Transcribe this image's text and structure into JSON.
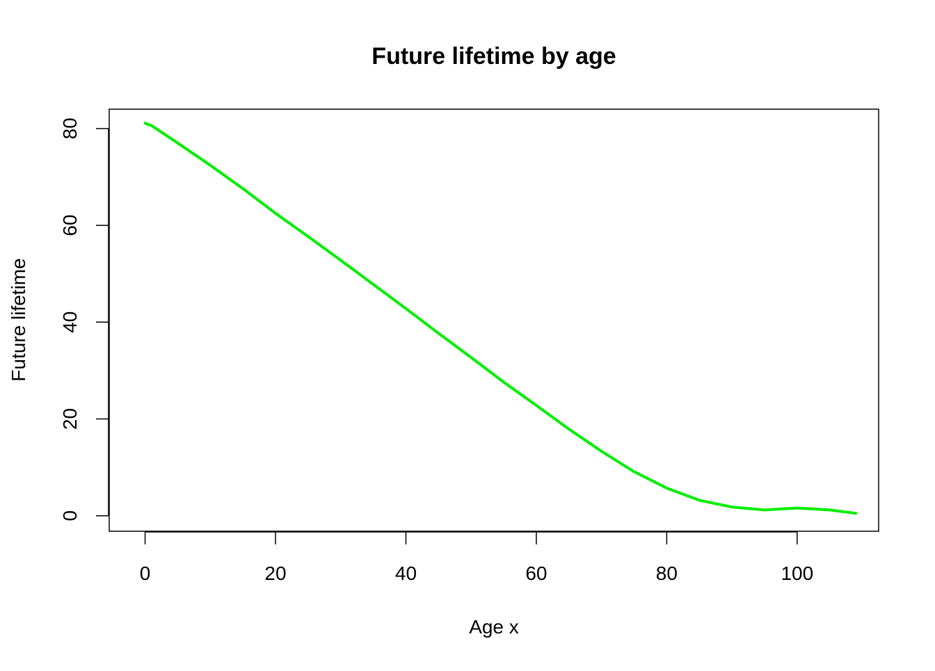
{
  "chart_data": {
    "type": "line",
    "title": "Future lifetime by age",
    "xlabel": "Age x",
    "ylabel": "Future lifetime",
    "xlim": [
      -5.5,
      112.5
    ],
    "ylim": [
      -3.2,
      84.0
    ],
    "xticks": [
      0,
      20,
      40,
      60,
      80,
      100
    ],
    "yticks": [
      0,
      20,
      40,
      60,
      80
    ],
    "grid": false,
    "series": [
      {
        "color": "#00ee00",
        "x": [
          0,
          1,
          2,
          5,
          10,
          15,
          20,
          25,
          30,
          35,
          40,
          45,
          50,
          55,
          60,
          65,
          70,
          75,
          80,
          85,
          90,
          95,
          100,
          105,
          109
        ],
        "y": [
          81.1,
          80.6,
          79.7,
          77.0,
          72.4,
          67.6,
          62.5,
          57.7,
          52.8,
          47.8,
          42.8,
          37.7,
          32.7,
          27.6,
          22.8,
          17.9,
          13.3,
          9.1,
          5.7,
          3.2,
          1.8,
          1.2,
          1.6,
          1.2,
          0.5
        ]
      }
    ]
  }
}
